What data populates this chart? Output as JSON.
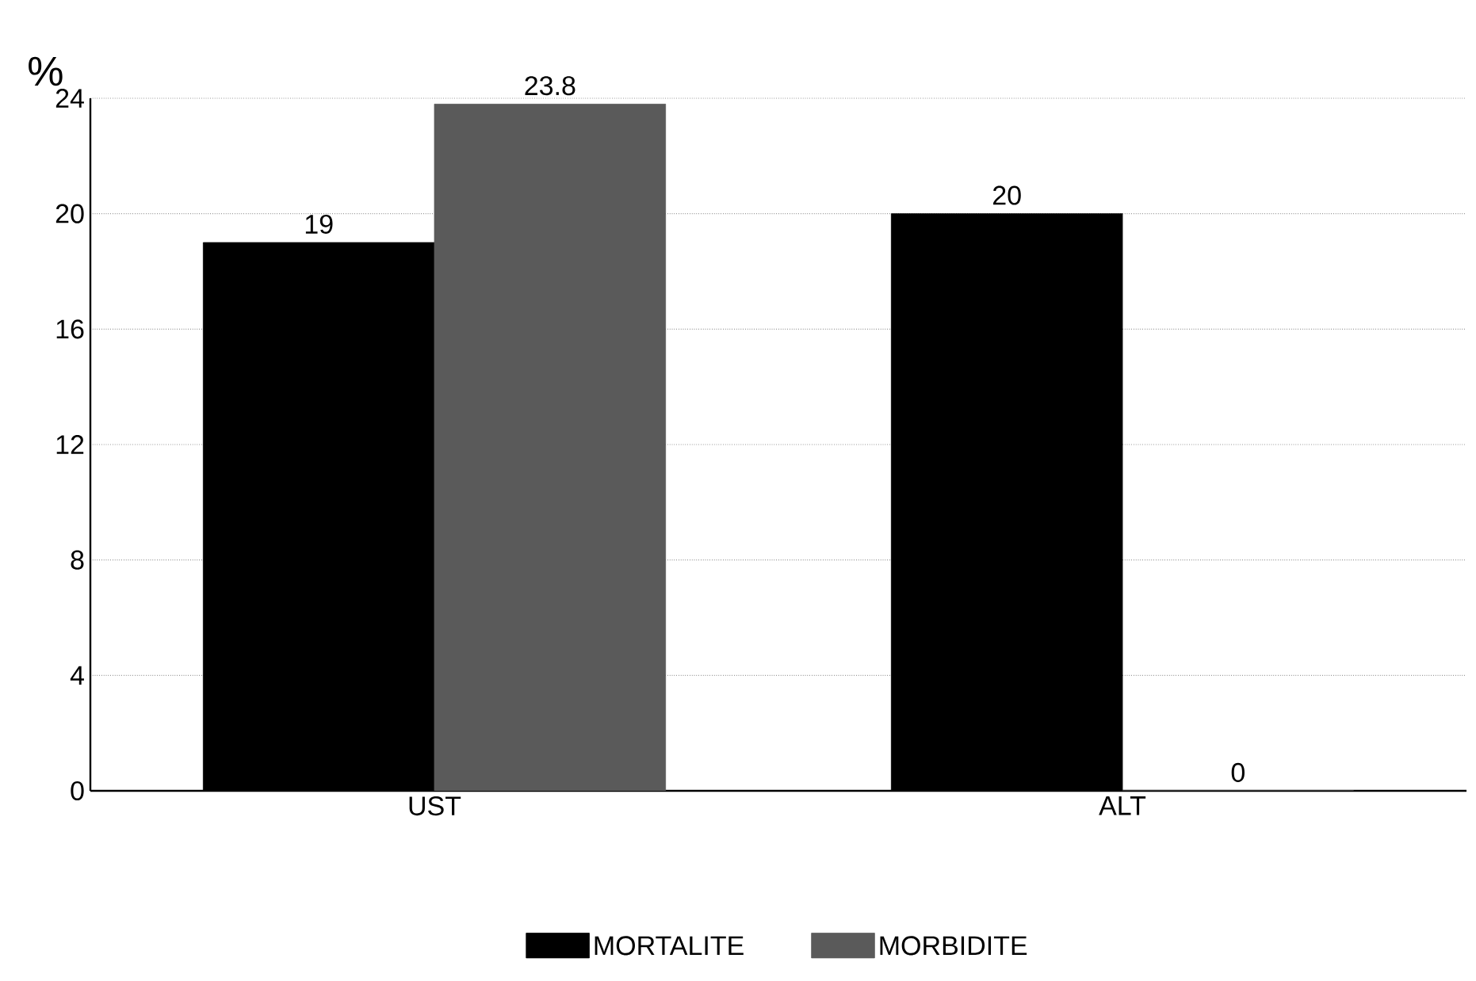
{
  "chart_data": {
    "type": "bar",
    "ylabel": "%",
    "categories": [
      "UST",
      "ALT"
    ],
    "series": [
      {
        "name": "MORTALITE",
        "color": "#000000",
        "values": [
          19,
          20
        ]
      },
      {
        "name": "MORBIDITE",
        "color": "#5a5a5a",
        "values": [
          23.8,
          0
        ]
      }
    ],
    "ylim": [
      0,
      24
    ],
    "yticks": [
      0,
      4,
      8,
      12,
      16,
      20,
      24
    ],
    "grid": "y",
    "legend": "bottom",
    "data_labels": true
  }
}
